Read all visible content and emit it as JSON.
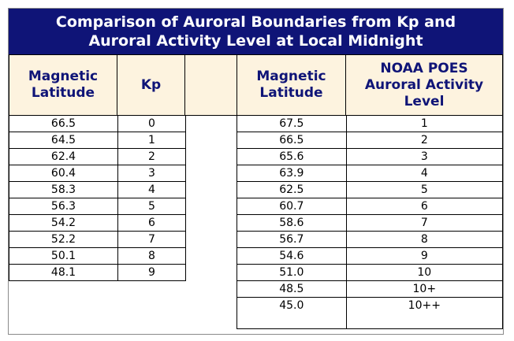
{
  "title": {
    "line1": "Comparison of Auroral Boundaries from Kp and",
    "line2": "Auroral Activity Level at Local Midnight"
  },
  "left_table": {
    "headers": {
      "col1_line1": "Magnetic",
      "col1_line2": "Latitude",
      "col2": "Kp"
    },
    "rows": [
      {
        "lat": "66.5",
        "kp": "0"
      },
      {
        "lat": "64.5",
        "kp": "1"
      },
      {
        "lat": "62.4",
        "kp": "2"
      },
      {
        "lat": "60.4",
        "kp": "3"
      },
      {
        "lat": "58.3",
        "kp": "4"
      },
      {
        "lat": "56.3",
        "kp": "5"
      },
      {
        "lat": "54.2",
        "kp": "6"
      },
      {
        "lat": "52.2",
        "kp": "7"
      },
      {
        "lat": "50.1",
        "kp": "8"
      },
      {
        "lat": "48.1",
        "kp": "9"
      }
    ]
  },
  "right_table": {
    "headers": {
      "col1_line1": "Magnetic",
      "col1_line2": "Latitude",
      "col2_line1": "NOAA POES",
      "col2_line2": "Auroral Activity",
      "col2_line3": "Level"
    },
    "rows": [
      {
        "lat": "67.5",
        "level": "1"
      },
      {
        "lat": "66.5",
        "level": "2"
      },
      {
        "lat": "65.6",
        "level": "3"
      },
      {
        "lat": "63.9",
        "level": "4"
      },
      {
        "lat": "62.5",
        "level": "5"
      },
      {
        "lat": "60.7",
        "level": "6"
      },
      {
        "lat": "58.6",
        "level": "7"
      },
      {
        "lat": "56.7",
        "level": "8"
      },
      {
        "lat": "54.6",
        "level": "9"
      },
      {
        "lat": "51.0",
        "level": "10"
      },
      {
        "lat": "48.5",
        "level": "10+"
      },
      {
        "lat": "45.0",
        "level": "10++"
      }
    ]
  }
}
